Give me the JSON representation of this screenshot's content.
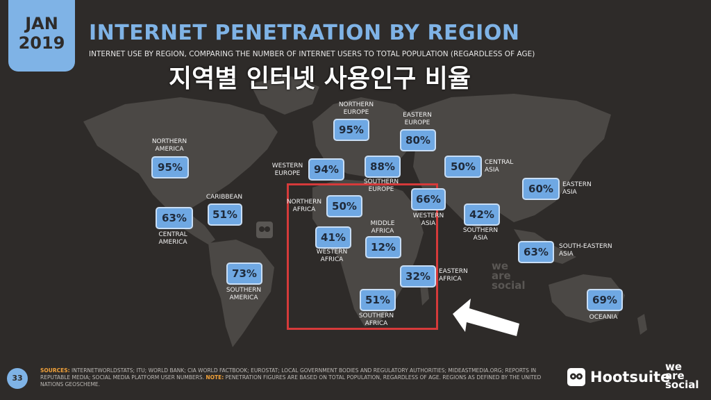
{
  "header": {
    "date_month": "JAN",
    "date_year": "2019",
    "title": "INTERNET PENETRATION BY REGION",
    "subtitle": "INTERNET USE BY REGION, COMPARING THE NUMBER OF INTERNET USERS TO TOTAL POPULATION (REGARDLESS OF AGE)",
    "overlay_korean": "지역별 인터넷 사용인구 비율"
  },
  "regions": {
    "northern_america": {
      "label1": "NORTHERN",
      "label2": "AMERICA",
      "value": "95%"
    },
    "central_america": {
      "label1": "CENTRAL",
      "label2": "AMERICA",
      "value": "63%"
    },
    "caribbean": {
      "label1": "CARIBBEAN",
      "value": "51%"
    },
    "southern_america": {
      "label1": "SOUTHERN",
      "label2": "AMERICA",
      "value": "73%"
    },
    "northern_europe": {
      "label1": "NORTHERN",
      "label2": "EUROPE",
      "value": "95%"
    },
    "western_europe": {
      "label1": "WESTERN",
      "label2": "EUROPE",
      "value": "94%"
    },
    "southern_europe": {
      "label1": "SOUTHERN",
      "label2": "EUROPE",
      "value": "88%"
    },
    "eastern_europe": {
      "label1": "EASTERN",
      "label2": "EUROPE",
      "value": "80%"
    },
    "central_asia": {
      "label1": "CENTRAL",
      "label2": "ASIA",
      "value": "50%"
    },
    "eastern_asia": {
      "label1": "EASTERN",
      "label2": "ASIA",
      "value": "60%"
    },
    "western_asia": {
      "label1": "WESTERN",
      "label2": "ASIA",
      "value": "66%"
    },
    "southern_asia": {
      "label1": "SOUTHERN",
      "label2": "ASIA",
      "value": "42%"
    },
    "south_eastern_asia": {
      "label1": "SOUTH-EASTERN",
      "label2": "ASIA",
      "value": "63%"
    },
    "oceania": {
      "label1": "OCEANIA",
      "value": "69%"
    },
    "northern_africa": {
      "label1": "NORTHERN",
      "label2": "AFRICA",
      "value": "50%"
    },
    "western_africa": {
      "label1": "WESTERN",
      "label2": "AFRICA",
      "value": "41%"
    },
    "middle_africa": {
      "label1": "MIDDLE",
      "label2": "AFRICA",
      "value": "12%"
    },
    "eastern_africa": {
      "label1": "EASTERN",
      "label2": "AFRICA",
      "value": "32%"
    },
    "southern_africa": {
      "label1": "SOUTHERN",
      "label2": "AFRICA",
      "value": "51%"
    }
  },
  "footer": {
    "page_number": "33",
    "sources_key": "SOURCES:",
    "sources_text": " INTERNETWORLDSTATS; ITU; WORLD BANK; CIA WORLD FACTBOOK; EUROSTAT; LOCAL GOVERNMENT BODIES AND REGULATORY AUTHORITIES; MIDEASTMEDIA.ORG; REPORTS IN REPUTABLE MEDIA; SOCIAL MEDIA PLATFORM USER NUMBERS. ",
    "note_key": "NOTE:",
    "note_text": " PENETRATION FIGURES ARE BASED ON TOTAL POPULATION, REGARDLESS OF AGE. REGIONS AS DEFINED BY THE UNITED NATIONS GEOSCHEME.",
    "brand_hootsuite": "Hootsuite",
    "brand_tm": "™",
    "brand_we": "we",
    "brand_are": "are",
    "brand_social": "social"
  },
  "watermark": {
    "we": "we",
    "are": "are",
    "social": "social"
  },
  "colors": {
    "background": "#2e2b29",
    "accent_blue": "#7fb3e6",
    "value_box": "#6fa8e3",
    "highlight_red": "#d63a3a",
    "source_key": "#f2a23a"
  }
}
